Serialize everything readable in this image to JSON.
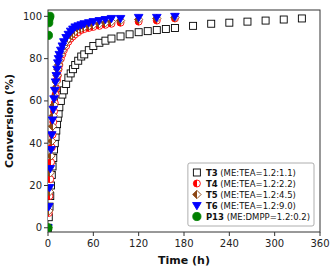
{
  "chart_data": {
    "type": "scatter",
    "xlabel": "Time (h)",
    "ylabel": "Conversion (%)",
    "xlim": [
      0,
      360
    ],
    "ylim": [
      -2,
      103
    ],
    "xticks": [
      0,
      60,
      120,
      180,
      240,
      300,
      360
    ],
    "yticks": [
      0,
      20,
      40,
      60,
      80,
      100
    ],
    "legend": "lower right",
    "series": [
      {
        "name": "T3 (ME:TEA=1.2:1.1)",
        "color": "black",
        "marker": "square-open",
        "x": [
          0,
          1,
          2,
          3,
          4,
          5,
          6,
          7,
          8,
          9,
          10,
          11,
          12,
          13,
          14,
          15,
          17,
          19,
          21,
          24,
          27,
          30,
          33,
          36,
          40,
          44,
          48,
          54,
          60,
          68,
          76,
          84,
          96,
          108,
          120,
          132,
          144,
          156,
          168,
          192,
          216,
          240,
          264,
          288,
          312,
          336
        ],
        "values": [
          0,
          5,
          10,
          15,
          20,
          25,
          29,
          33,
          37,
          40,
          43,
          46,
          49,
          52,
          54,
          57,
          60,
          63,
          65,
          68,
          71,
          73,
          75,
          77,
          79,
          81,
          82,
          84,
          86,
          87.5,
          88.5,
          89.5,
          90.5,
          91.5,
          92.5,
          93,
          93.5,
          94,
          94.5,
          95.5,
          96.5,
          97,
          97.5,
          98,
          98.5,
          99
        ]
      },
      {
        "name": "T4 (ME:TEA=1.2:2.2)",
        "color": "red",
        "marker": "circle-half",
        "x": [
          0,
          1,
          2,
          3,
          4,
          5,
          6,
          7,
          8,
          9,
          10,
          11,
          12,
          13,
          14,
          15,
          17,
          19,
          21,
          24,
          27,
          30,
          33,
          36,
          40,
          44,
          48,
          54,
          60,
          68,
          76,
          84,
          96,
          120,
          144,
          168
        ],
        "values": [
          0,
          7,
          15,
          23,
          31,
          38,
          44,
          50,
          55,
          59,
          63,
          66,
          70,
          72,
          75,
          77,
          80,
          82,
          84,
          86,
          88,
          89.5,
          90.5,
          91.5,
          92.5,
          93.5,
          94,
          94.5,
          95,
          95.5,
          96,
          96.5,
          97,
          97.5,
          98,
          99
        ]
      },
      {
        "name": "T5 (ME:TEA=1.2:4.5)",
        "color": "#8B4513",
        "marker": "diamond-half",
        "x": [
          0,
          1,
          2,
          3,
          4,
          5,
          6,
          7,
          8,
          9,
          10,
          11,
          12,
          13,
          14,
          15,
          17,
          19,
          21,
          24,
          27,
          30,
          33,
          36,
          40,
          44,
          48,
          54,
          60,
          68,
          76,
          84,
          96,
          120,
          144,
          168
        ],
        "values": [
          0,
          8,
          17,
          26,
          34,
          41,
          48,
          53,
          58,
          62,
          66,
          69,
          72,
          75,
          77,
          79,
          82,
          84,
          86,
          88,
          89.5,
          91,
          92,
          93,
          94,
          94.5,
          95,
          95.5,
          96,
          96.5,
          97,
          97.5,
          98,
          98.5,
          99,
          99.5
        ]
      },
      {
        "name": "T6 (ME:TEA=1.2:9.0)",
        "color": "blue",
        "marker": "triangle-down",
        "x": [
          0,
          1,
          2,
          3,
          4,
          5,
          6,
          7,
          8,
          9,
          10,
          11,
          12,
          13,
          14,
          15,
          17,
          19,
          21,
          24,
          27,
          30,
          33,
          36,
          40,
          44,
          48,
          54,
          60,
          68,
          76,
          84,
          96,
          120,
          144,
          168
        ],
        "values": [
          0,
          10,
          19,
          28,
          37,
          44,
          51,
          56,
          61,
          65,
          69,
          72,
          75,
          78,
          80,
          82,
          84,
          86,
          88,
          90,
          91.5,
          93,
          94,
          95,
          95.5,
          96,
          96.5,
          97,
          97.5,
          98,
          98.5,
          99,
          99,
          99.5,
          99.5,
          100
        ]
      },
      {
        "name": "P13 (ME:DMPP=1.2:0.2)",
        "color": "green",
        "marker": "circle",
        "x": [
          0,
          0.5,
          1.0,
          1.5,
          2.5
        ],
        "values": [
          0,
          91,
          97,
          99,
          100
        ]
      }
    ]
  }
}
